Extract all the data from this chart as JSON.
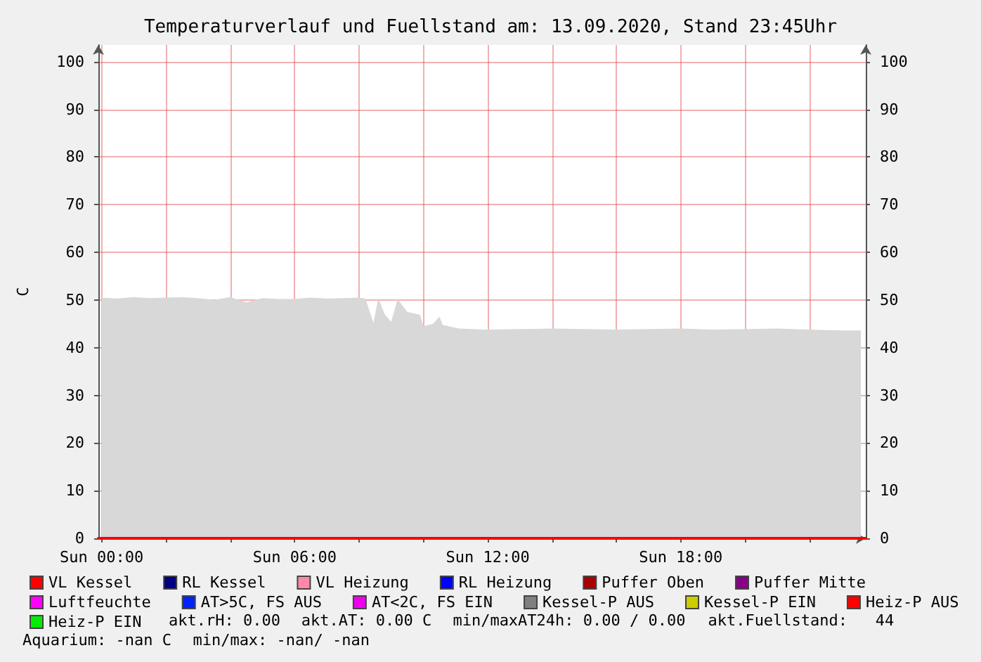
{
  "chart_data": {
    "type": "line",
    "title": "Temperaturverlauf und Fuellstand am: 13.09.2020, Stand 23:45Uhr",
    "ylabel": "C",
    "x": [
      "2020-09-13T00:00",
      "2020-09-13T00:30",
      "2020-09-13T01:00",
      "2020-09-13T01:30",
      "2020-09-13T02:00",
      "2020-09-13T02:30",
      "2020-09-13T03:00",
      "2020-09-13T03:30",
      "2020-09-13T04:00",
      "2020-09-13T04:30",
      "2020-09-13T05:00",
      "2020-09-13T05:30",
      "2020-09-13T06:00",
      "2020-09-13T06:30",
      "2020-09-13T07:00",
      "2020-09-13T07:30",
      "2020-09-13T08:00",
      "2020-09-13T08:12",
      "2020-09-13T08:27",
      "2020-09-13T08:36",
      "2020-09-13T08:48",
      "2020-09-13T09:00",
      "2020-09-13T09:12",
      "2020-09-13T09:30",
      "2020-09-13T09:54",
      "2020-09-13T10:00",
      "2020-09-13T10:18",
      "2020-09-13T10:30",
      "2020-09-13T10:36",
      "2020-09-13T11:06",
      "2020-09-13T12:00",
      "2020-09-13T13:00",
      "2020-09-13T14:00",
      "2020-09-13T15:00",
      "2020-09-13T16:00",
      "2020-09-13T17:00",
      "2020-09-13T18:00",
      "2020-09-13T19:00",
      "2020-09-13T20:00",
      "2020-09-13T21:00",
      "2020-09-13T22:00",
      "2020-09-13T23:00",
      "2020-09-13T23:36"
    ],
    "series": [
      {
        "type": "area",
        "color": "#d8d8d8",
        "values": [
          50.5,
          50.3,
          50.6,
          50.4,
          50.5,
          50.6,
          50.4,
          50,
          50.6,
          49.5,
          50.4,
          50.2,
          50.2,
          50.5,
          50.3,
          50.4,
          50.5,
          50.3,
          45.2,
          50.4,
          47,
          45.4,
          50.2,
          47.5,
          46.9,
          44.5,
          45,
          46.5,
          44.8,
          44,
          43.8,
          43.9,
          44,
          43.9,
          43.8,
          43.9,
          44,
          43.8,
          43.9,
          44,
          43.8,
          43.6,
          43.6
        ]
      },
      {
        "name": "VL Kessel",
        "color": "#ff0000",
        "values": [
          null,
          null,
          null,
          null,
          null,
          null,
          null,
          null,
          null,
          null,
          null,
          null,
          null,
          null,
          null,
          null,
          null,
          null,
          null,
          null,
          null,
          null,
          null,
          null,
          null,
          null,
          null,
          null,
          null,
          null,
          null,
          null,
          null,
          null,
          null,
          null,
          null,
          null,
          null,
          null,
          null,
          null,
          null
        ]
      },
      {
        "name": "RL Kessel",
        "color": "#000080",
        "values": [
          null,
          null,
          null,
          null,
          null,
          null,
          null,
          null,
          null,
          null,
          null,
          null,
          null,
          null,
          null,
          null,
          null,
          null,
          null,
          null,
          null,
          null,
          null,
          null,
          null,
          null,
          null,
          null,
          null,
          null,
          null,
          null,
          null,
          null,
          null,
          null,
          null,
          null,
          null,
          null,
          null,
          null,
          null
        ]
      },
      {
        "name": "VL Heizung",
        "color": "#ff88aa",
        "values": [
          null,
          null,
          null,
          null,
          null,
          null,
          null,
          null,
          null,
          null,
          null,
          null,
          null,
          null,
          null,
          null,
          null,
          null,
          null,
          null,
          null,
          null,
          null,
          null,
          null,
          null,
          null,
          null,
          null,
          null,
          null,
          null,
          null,
          null,
          null,
          null,
          null,
          null,
          null,
          null,
          null,
          null,
          null
        ]
      },
      {
        "name": "RL Heizung",
        "color": "#0000ff",
        "values": [
          null,
          null,
          null,
          null,
          null,
          null,
          null,
          null,
          null,
          null,
          null,
          null,
          null,
          null,
          null,
          null,
          null,
          null,
          null,
          null,
          null,
          null,
          null,
          null,
          null,
          null,
          null,
          null,
          null,
          null,
          null,
          null,
          null,
          null,
          null,
          null,
          null,
          null,
          null,
          null,
          null,
          null,
          null
        ]
      },
      {
        "name": "Puffer Oben",
        "color": "#aa0000",
        "values": [
          null,
          null,
          null,
          null,
          null,
          null,
          null,
          null,
          null,
          null,
          null,
          null,
          null,
          null,
          null,
          null,
          null,
          null,
          null,
          null,
          null,
          null,
          null,
          null,
          null,
          null,
          null,
          null,
          null,
          null,
          null,
          null,
          null,
          null,
          null,
          null,
          null,
          null,
          null,
          null,
          null,
          null,
          null
        ]
      },
      {
        "name": "Puffer Mitte",
        "color": "#880088",
        "values": [
          null,
          null,
          null,
          null,
          null,
          null,
          null,
          null,
          null,
          null,
          null,
          null,
          null,
          null,
          null,
          null,
          null,
          null,
          null,
          null,
          null,
          null,
          null,
          null,
          null,
          null,
          null,
          null,
          null,
          null,
          null,
          null,
          null,
          null,
          null,
          null,
          null,
          null,
          null,
          null,
          null,
          null,
          null
        ]
      },
      {
        "name": "Luftfeuchte",
        "color": "#ff00ff",
        "values": [
          null,
          null,
          null,
          null,
          null,
          null,
          null,
          null,
          null,
          null,
          null,
          null,
          null,
          null,
          null,
          null,
          null,
          null,
          null,
          null,
          null,
          null,
          null,
          null,
          null,
          null,
          null,
          null,
          null,
          null,
          null,
          null,
          null,
          null,
          null,
          null,
          null,
          null,
          null,
          null,
          null,
          null,
          null
        ]
      },
      {
        "name": "AT>5C, FS AUS",
        "color": "#0022ff",
        "values": [
          null,
          null,
          null,
          null,
          null,
          null,
          null,
          null,
          null,
          null,
          null,
          null,
          null,
          null,
          null,
          null,
          null,
          null,
          null,
          null,
          null,
          null,
          null,
          null,
          null,
          null,
          null,
          null,
          null,
          null,
          null,
          null,
          null,
          null,
          null,
          null,
          null,
          null,
          null,
          null,
          null,
          null,
          null
        ]
      },
      {
        "name": "AT<2C, FS EIN",
        "color": "#ee00ee",
        "values": [
          null,
          null,
          null,
          null,
          null,
          null,
          null,
          null,
          null,
          null,
          null,
          null,
          null,
          null,
          null,
          null,
          null,
          null,
          null,
          null,
          null,
          null,
          null,
          null,
          null,
          null,
          null,
          null,
          null,
          null,
          null,
          null,
          null,
          null,
          null,
          null,
          null,
          null,
          null,
          null,
          null,
          null,
          null
        ]
      },
      {
        "name": "Kessel-P AUS",
        "color": "#808080",
        "values": [
          null,
          null,
          null,
          null,
          null,
          null,
          null,
          null,
          null,
          null,
          null,
          null,
          null,
          null,
          null,
          null,
          null,
          null,
          null,
          null,
          null,
          null,
          null,
          null,
          null,
          null,
          null,
          null,
          null,
          null,
          null,
          null,
          null,
          null,
          null,
          null,
          null,
          null,
          null,
          null,
          null,
          null,
          null
        ]
      },
      {
        "name": "Kessel-P EIN",
        "color": "#cccc00",
        "values": [
          null,
          null,
          null,
          null,
          null,
          null,
          null,
          null,
          null,
          null,
          null,
          null,
          null,
          null,
          null,
          null,
          null,
          null,
          null,
          null,
          null,
          null,
          null,
          null,
          null,
          null,
          null,
          null,
          null,
          null,
          null,
          null,
          null,
          null,
          null,
          null,
          null,
          null,
          null,
          null,
          null,
          null,
          null
        ]
      },
      {
        "name": "Heiz-P AUS",
        "color": "#ff0000",
        "x": [
          "2020-09-12T23:54",
          "2020-09-13T23:45"
        ],
        "values": [
          0,
          0
        ]
      },
      {
        "name": "Heiz-P EIN",
        "color": "#00ee00",
        "values": [
          null,
          null,
          null,
          null,
          null,
          null,
          null,
          null,
          null,
          null,
          null,
          null,
          null,
          null,
          null,
          null,
          null,
          null,
          null,
          null,
          null,
          null,
          null,
          null,
          null,
          null,
          null,
          null,
          null,
          null,
          null,
          null,
          null,
          null,
          null,
          null,
          null,
          null,
          null,
          null,
          null,
          null,
          null
        ]
      }
    ],
    "xlim": [
      "2020-09-12T23:54",
      "2020-09-13T23:45"
    ],
    "xticks": [
      {
        "value": "2020-09-13T00:00",
        "label": "Sun 00:00"
      },
      {
        "value": "2020-09-13T02:00",
        "label": null
      },
      {
        "value": "2020-09-13T04:00",
        "label": null
      },
      {
        "value": "2020-09-13T06:00",
        "label": "Sun 06:00"
      },
      {
        "value": "2020-09-13T08:00",
        "label": null
      },
      {
        "value": "2020-09-13T10:00",
        "label": null
      },
      {
        "value": "2020-09-13T12:00",
        "label": "Sun 12:00"
      },
      {
        "value": "2020-09-13T14:00",
        "label": null
      },
      {
        "value": "2020-09-13T16:00",
        "label": null
      },
      {
        "value": "2020-09-13T18:00",
        "label": "Sun 18:00"
      },
      {
        "value": "2020-09-13T20:00",
        "label": null
      },
      {
        "value": "2020-09-13T22:00",
        "label": null
      }
    ],
    "ylim": [
      0,
      103.5
    ],
    "yticks": [
      0,
      10,
      20,
      30,
      40,
      50,
      60,
      70,
      80,
      90,
      100
    ],
    "y2lim": [
      0,
      103.5
    ],
    "y2ticks": [
      0,
      10,
      20,
      30,
      40,
      50,
      60,
      70,
      80,
      90,
      100
    ],
    "grid": true,
    "legend": "bottom",
    "marker": "none",
    "line_style": "solid",
    "annotations": [
      "akt.rH: 0.00",
      "akt.AT: 0.00 C",
      "min/maxAT24h: 0.00 / 0.00",
      "akt.Fuellstand:   44",
      "Aquarium: -nan C",
      "min/max: -nan/ -nan"
    ]
  }
}
